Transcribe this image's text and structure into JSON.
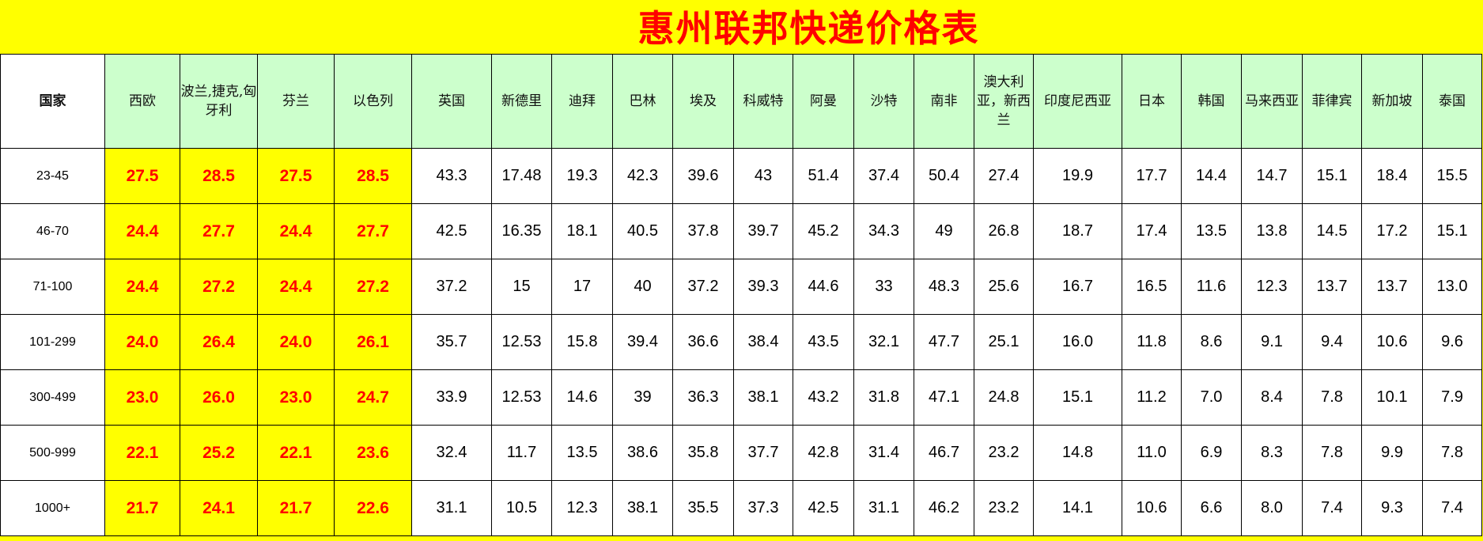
{
  "title": "惠州联邦快递价格表",
  "corner_label": "国家",
  "columns": [
    "西欧",
    "波兰,捷克,匈牙利",
    "芬兰",
    "以色列",
    "英国",
    "新德里",
    "迪拜",
    "巴林",
    "埃及",
    "科威特",
    "阿曼",
    "沙特",
    "南非",
    "澳大利亚，新西兰",
    "印度尼西亚",
    "日本",
    "韩国",
    "马来西亚",
    "菲律宾",
    "新加坡",
    "泰国"
  ],
  "highlighted_columns": 4,
  "colors": {
    "title": "#ff0000",
    "header_bg": "#ccffcc",
    "highlight_bg": "#ffff00",
    "highlight_text": "#ff0000"
  },
  "rows": [
    {
      "weight": "23-45",
      "values": [
        "27.5",
        "28.5",
        "27.5",
        "28.5",
        "43.3",
        "17.48",
        "19.3",
        "42.3",
        "39.6",
        "43",
        "51.4",
        "37.4",
        "50.4",
        "27.4",
        "19.9",
        "17.7",
        "14.4",
        "14.7",
        "15.1",
        "18.4",
        "15.5"
      ]
    },
    {
      "weight": "46-70",
      "values": [
        "24.4",
        "27.7",
        "24.4",
        "27.7",
        "42.5",
        "16.35",
        "18.1",
        "40.5",
        "37.8",
        "39.7",
        "45.2",
        "34.3",
        "49",
        "26.8",
        "18.7",
        "17.4",
        "13.5",
        "13.8",
        "14.5",
        "17.2",
        "15.1"
      ]
    },
    {
      "weight": "71-100",
      "values": [
        "24.4",
        "27.2",
        "24.4",
        "27.2",
        "37.2",
        "15",
        "17",
        "40",
        "37.2",
        "39.3",
        "44.6",
        "33",
        "48.3",
        "25.6",
        "16.7",
        "16.5",
        "11.6",
        "12.3",
        "13.7",
        "13.7",
        "13.0"
      ]
    },
    {
      "weight": "101-299",
      "values": [
        "24.0",
        "26.4",
        "24.0",
        "26.1",
        "35.7",
        "12.53",
        "15.8",
        "39.4",
        "36.6",
        "38.4",
        "43.5",
        "32.1",
        "47.7",
        "25.1",
        "16.0",
        "11.8",
        "8.6",
        "9.1",
        "9.4",
        "10.6",
        "9.6"
      ]
    },
    {
      "weight": "300-499",
      "values": [
        "23.0",
        "26.0",
        "23.0",
        "24.7",
        "33.9",
        "12.53",
        "14.6",
        "39",
        "36.3",
        "38.1",
        "43.2",
        "31.8",
        "47.1",
        "24.8",
        "15.1",
        "11.2",
        "7.0",
        "8.4",
        "7.8",
        "10.1",
        "7.9"
      ]
    },
    {
      "weight": "500-999",
      "values": [
        "22.1",
        "25.2",
        "22.1",
        "23.6",
        "32.4",
        "11.7",
        "13.5",
        "38.6",
        "35.8",
        "37.7",
        "42.8",
        "31.4",
        "46.7",
        "23.2",
        "14.8",
        "11.0",
        "6.9",
        "8.3",
        "7.8",
        "9.9",
        "7.8"
      ]
    },
    {
      "weight": "1000+",
      "values": [
        "21.7",
        "24.1",
        "21.7",
        "22.6",
        "31.1",
        "10.5",
        "12.3",
        "38.1",
        "35.5",
        "37.3",
        "42.5",
        "31.1",
        "46.2",
        "23.2",
        "14.1",
        "10.6",
        "6.6",
        "8.0",
        "7.4",
        "9.3",
        "7.4"
      ]
    }
  ]
}
